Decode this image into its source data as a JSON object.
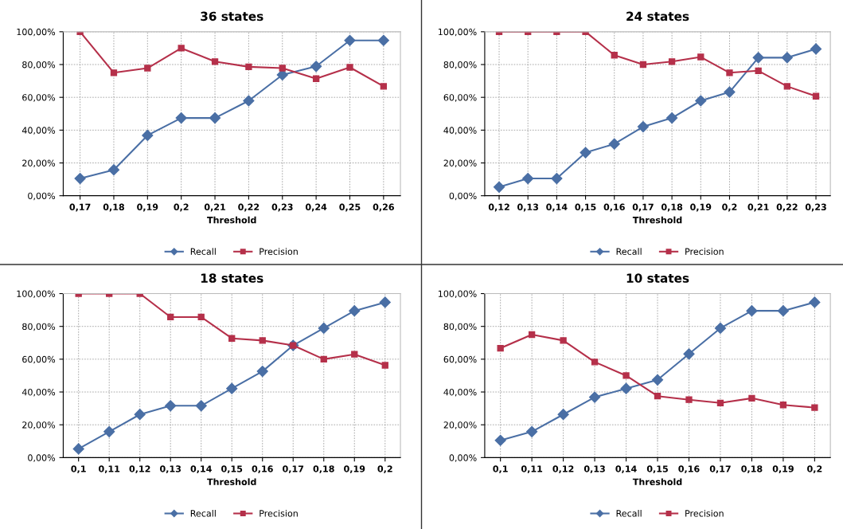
{
  "chart_data": [
    {
      "type": "line",
      "title": "36 states",
      "xlabel": "Threshold",
      "categories": [
        "0,17",
        "0,18",
        "0,19",
        "0,2",
        "0,21",
        "0,22",
        "0,23",
        "0,24",
        "0,25",
        "0,26"
      ],
      "series": [
        {
          "name": "Recall",
          "color": "#4a6fa5",
          "marker": "diamond",
          "values": [
            10.5,
            15.8,
            36.8,
            47.4,
            47.4,
            57.9,
            73.7,
            78.9,
            94.7,
            94.7
          ]
        },
        {
          "name": "Precision",
          "color": "#b5304a",
          "marker": "square",
          "values": [
            100,
            75,
            77.8,
            90,
            81.8,
            78.6,
            77.8,
            71.4,
            78.3,
            66.7
          ]
        }
      ],
      "ylim": [
        0,
        100
      ],
      "yticks": [
        {
          "value": 0,
          "label": "0,00%"
        },
        {
          "value": 20,
          "label": "20,00%"
        },
        {
          "value": 40,
          "label": "40,00%"
        },
        {
          "value": 60,
          "label": "60,00%"
        },
        {
          "value": 80,
          "label": "80,00%"
        },
        {
          "value": 100,
          "label": "100,00%"
        }
      ],
      "grid": true,
      "legend": "bottom"
    },
    {
      "type": "line",
      "title": "24 states",
      "xlabel": "Threshold",
      "categories": [
        "0,12",
        "0,13",
        "0,14",
        "0,15",
        "0,16",
        "0,17",
        "0,18",
        "0,19",
        "0,2",
        "0,21",
        "0,22",
        "0,23"
      ],
      "series": [
        {
          "name": "Recall",
          "color": "#4a6fa5",
          "marker": "diamond",
          "values": [
            5.3,
            10.5,
            10.5,
            26.3,
            31.6,
            42.1,
            47.4,
            57.9,
            63.2,
            84.2,
            84.2,
            89.5
          ]
        },
        {
          "name": "Precision",
          "color": "#b5304a",
          "marker": "square",
          "values": [
            100,
            100,
            100,
            100,
            85.7,
            80,
            81.8,
            84.6,
            75,
            76.2,
            66.7,
            60.7
          ]
        }
      ],
      "ylim": [
        0,
        100
      ],
      "yticks": [
        {
          "value": 0,
          "label": "0,00%"
        },
        {
          "value": 20,
          "label": "20,00%"
        },
        {
          "value": 40,
          "label": "40,00%"
        },
        {
          "value": 60,
          "label": "60,00%"
        },
        {
          "value": 80,
          "label": "80,00%"
        },
        {
          "value": 100,
          "label": "100,00%"
        }
      ],
      "grid": true,
      "legend": "bottom"
    },
    {
      "type": "line",
      "title": "18 states",
      "xlabel": "Threshold",
      "categories": [
        "0,1",
        "0,11",
        "0,12",
        "0,13",
        "0,14",
        "0,15",
        "0,16",
        "0,17",
        "0,18",
        "0,19",
        "0,2"
      ],
      "series": [
        {
          "name": "Recall",
          "color": "#4a6fa5",
          "marker": "diamond",
          "values": [
            5.3,
            15.8,
            26.3,
            31.6,
            31.6,
            42.1,
            52.6,
            68.4,
            78.9,
            89.5,
            94.7
          ]
        },
        {
          "name": "Precision",
          "color": "#b5304a",
          "marker": "square",
          "values": [
            100,
            100,
            100,
            85.7,
            85.7,
            72.7,
            71.4,
            68.4,
            60,
            63,
            56.3
          ]
        }
      ],
      "ylim": [
        0,
        100
      ],
      "yticks": [
        {
          "value": 0,
          "label": "0,00%"
        },
        {
          "value": 20,
          "label": "20,00%"
        },
        {
          "value": 40,
          "label": "40,00%"
        },
        {
          "value": 60,
          "label": "60,00%"
        },
        {
          "value": 80,
          "label": "80,00%"
        },
        {
          "value": 100,
          "label": "100,00%"
        }
      ],
      "grid": true,
      "legend": "bottom"
    },
    {
      "type": "line",
      "title": "10 states",
      "xlabel": "Threshold",
      "categories": [
        "0,1",
        "0,11",
        "0,12",
        "0,13",
        "0,14",
        "0,15",
        "0,16",
        "0,17",
        "0,18",
        "0,19",
        "0,2"
      ],
      "series": [
        {
          "name": "Recall",
          "color": "#4a6fa5",
          "marker": "diamond",
          "values": [
            10.5,
            15.8,
            26.3,
            36.8,
            42.1,
            47.4,
            63.2,
            78.9,
            89.5,
            89.5,
            94.7
          ]
        },
        {
          "name": "Precision",
          "color": "#b5304a",
          "marker": "square",
          "values": [
            66.7,
            75,
            71.4,
            58.3,
            50,
            37.5,
            35.3,
            33.3,
            36.2,
            32.1,
            30.5
          ]
        }
      ],
      "ylim": [
        0,
        100
      ],
      "yticks": [
        {
          "value": 0,
          "label": "0,00%"
        },
        {
          "value": 20,
          "label": "20,00%"
        },
        {
          "value": 40,
          "label": "40,00%"
        },
        {
          "value": 60,
          "label": "60,00%"
        },
        {
          "value": 80,
          "label": "80,00%"
        },
        {
          "value": 100,
          "label": "100,00%"
        }
      ],
      "grid": true,
      "legend": "bottom"
    }
  ]
}
